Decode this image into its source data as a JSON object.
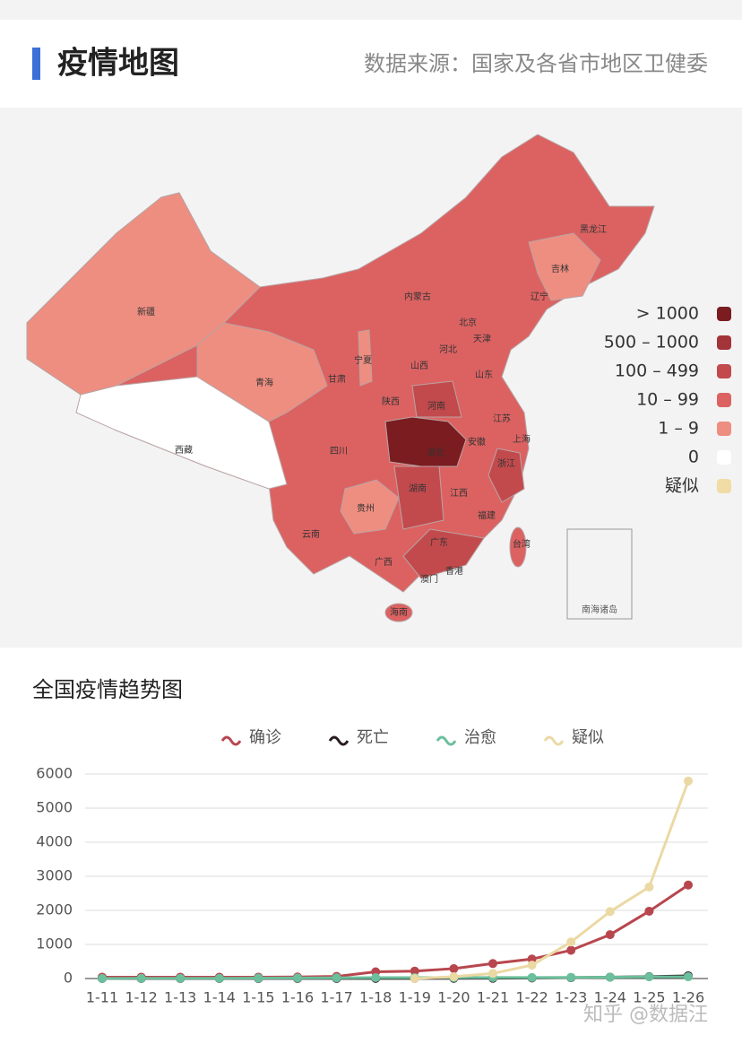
{
  "header": {
    "title": "疫情地图",
    "source": "数据来源：国家及各省市地区卫健委"
  },
  "map": {
    "legend": [
      {
        "label": "> 1000",
        "color": "#7a1c20"
      },
      {
        "label": "500 – 1000",
        "color": "#a3343a"
      },
      {
        "label": "100 – 499",
        "color": "#c24a4d"
      },
      {
        "label": "10 – 99",
        "color": "#dc6262"
      },
      {
        "label": "1 – 9",
        "color": "#ee8e80"
      },
      {
        "label": "0",
        "color": "#ffffff"
      },
      {
        "label": "疑似",
        "color": "#f0dca4"
      }
    ],
    "provinces": [
      "新疆",
      "西藏",
      "青海",
      "甘肃",
      "宁夏",
      "内蒙古",
      "黑龙江",
      "吉林",
      "辽宁",
      "北京",
      "天津",
      "河北",
      "山西",
      "陕西",
      "山东",
      "河南",
      "四川",
      "湖北",
      "安徽",
      "江苏",
      "上海",
      "浙江",
      "湖南",
      "江西",
      "贵州",
      "云南",
      "广西",
      "广东",
      "福建",
      "台湾",
      "香港",
      "澳门",
      "海南"
    ],
    "inset_label": "南海诸岛"
  },
  "chart_data": {
    "type": "line",
    "title": "全国疫情趋势图",
    "categories": [
      "1-11",
      "1-12",
      "1-13",
      "1-14",
      "1-15",
      "1-16",
      "1-17",
      "1-18",
      "1-19",
      "1-20",
      "1-21",
      "1-22",
      "1-23",
      "1-24",
      "1-25",
      "1-26"
    ],
    "series": [
      {
        "name": "确诊",
        "color": "#b8464e",
        "values": [
          41,
          41,
          41,
          41,
          41,
          45,
          62,
          198,
          218,
          291,
          440,
          571,
          830,
          1287,
          1975,
          2744
        ]
      },
      {
        "name": "死亡",
        "color": "#2a1c20",
        "values": [
          1,
          1,
          1,
          1,
          2,
          2,
          2,
          3,
          3,
          6,
          9,
          17,
          25,
          41,
          56,
          80
        ]
      },
      {
        "name": "治愈",
        "color": "#6cbf9c",
        "values": [
          2,
          5,
          7,
          7,
          12,
          15,
          19,
          25,
          25,
          25,
          28,
          28,
          34,
          38,
          49,
          51
        ]
      },
      {
        "name": "疑似",
        "color": "#ebd9a4",
        "values": [
          null,
          null,
          null,
          null,
          null,
          null,
          null,
          null,
          0,
          54,
          150,
          393,
          1072,
          1965,
          2684,
          5794
        ]
      }
    ],
    "ylim": [
      0,
      6000
    ],
    "yticks": [
      0,
      1000,
      2000,
      3000,
      4000,
      5000,
      6000
    ],
    "grid": true
  },
  "watermark": "知乎 @数据汪"
}
